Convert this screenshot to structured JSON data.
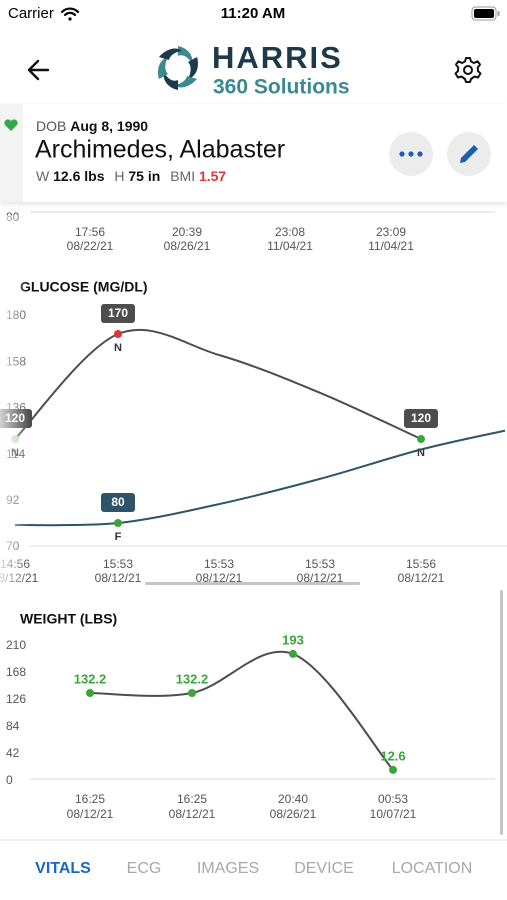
{
  "status_bar": {
    "carrier": "Carrier",
    "time": "11:20 AM"
  },
  "header": {
    "logo_name": "HARRIS",
    "logo_tagline": "360 Solutions"
  },
  "patient": {
    "dob_label": "DOB",
    "dob": "Aug 8, 1990",
    "name": "Archimedes, Alabaster",
    "weight_label": "W",
    "weight": "12.6 lbs",
    "height_label": "H",
    "height": "75 in",
    "bmi_label": "BMI",
    "bmi": "1.57"
  },
  "chart_data": [
    {
      "type": "line",
      "yticks": [
        80
      ],
      "categories": [
        "17:56",
        "20:39",
        "23:08",
        "23:09"
      ],
      "dates": [
        "08/22/21",
        "08/26/21",
        "11/04/21",
        "11/04/21"
      ]
    },
    {
      "type": "line",
      "title": "GLUCOSE (MG/DL)",
      "ylim": [
        70,
        180
      ],
      "yticks": [
        70,
        92,
        114,
        136,
        158,
        180
      ],
      "categories": [
        "14:56",
        "15:53",
        "15:53",
        "15:53",
        "15:56",
        null
      ],
      "dates": [
        "08/12/21",
        "08/12/21",
        "08/12/21",
        "08/12/21",
        "08/12/21",
        null
      ],
      "value_label_style": "box",
      "series": [
        {
          "color": "#4d4d4d",
          "values": [
            120,
            170,
            160,
            142,
            120,
            null
          ],
          "point_labels": [
            "N",
            "N",
            null,
            null,
            "N",
            null
          ],
          "marker_colors": [
            "#bcdcba",
            "#d9373b",
            null,
            null,
            "#3aa63a",
            null
          ]
        },
        {
          "color": "#2d5468",
          "values": [
            79,
            80,
            89,
            101,
            115,
            124
          ],
          "point_labels": [
            null,
            "F",
            null,
            null,
            null,
            null
          ],
          "marker_colors": [
            null,
            "#3aa63a",
            null,
            null,
            null,
            null
          ]
        }
      ]
    },
    {
      "type": "line",
      "title": "WEIGHT (LBS)",
      "ylim": [
        0,
        210
      ],
      "yticks": [
        0,
        42,
        84,
        126,
        168,
        210
      ],
      "categories": [
        "16:25",
        "16:25",
        "20:40",
        "00:53"
      ],
      "dates": [
        "08/12/21",
        "08/12/21",
        "08/26/21",
        "10/07/21"
      ],
      "value_label_style": "plain",
      "series": [
        {
          "color": "#4d4d4d",
          "values": [
            132.2,
            132.2,
            193,
            12.6
          ],
          "label_color": "#3aa63a",
          "marker_colors": [
            "#3aa63a",
            "#3aa63a",
            "#3aa63a",
            "#3aa63a"
          ]
        }
      ]
    }
  ],
  "tabs": [
    "VITALS",
    "ECG",
    "IMAGES",
    "DEVICE",
    "LOCATION"
  ],
  "active_tab": 0
}
